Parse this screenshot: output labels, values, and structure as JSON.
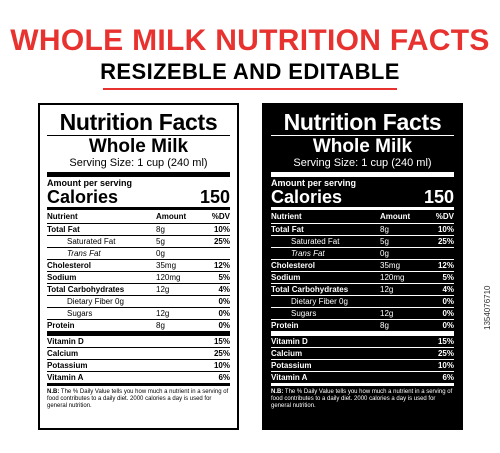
{
  "header": {
    "headline": "WHOLE MILK NUTRITION FACTS",
    "subhead": "RESIZEBLE AND EDITABLE",
    "accent_color": "#e8322f"
  },
  "label": {
    "title": "Nutrition Facts",
    "product": "Whole Milk",
    "serving": "Serving Size: 1 cup (240 ml)",
    "amount_per_serving": "Amount per serving",
    "calories_label": "Calories",
    "calories_value": "150",
    "columns": {
      "nutrient": "Nutrient",
      "amount": "Amount",
      "dv": "%DV"
    },
    "rows": [
      {
        "name": "Total Fat",
        "amount": "8g",
        "dv": "10%"
      },
      {
        "name": "Saturated Fat",
        "amount": "5g",
        "dv": "25%"
      },
      {
        "name": "Trans Fat",
        "amount": "0g",
        "dv": ""
      },
      {
        "name": "Cholesterol",
        "amount": "35mg",
        "dv": "12%"
      },
      {
        "name": "Sodium",
        "amount": "120mg",
        "dv": "5%"
      },
      {
        "name": "Total Carbohydrates",
        "amount": "12g",
        "dv": "4%"
      },
      {
        "name": "Dietary Fiber 0g",
        "amount": "",
        "dv": "0%"
      },
      {
        "name": "Sugars",
        "amount": "12g",
        "dv": "0%"
      },
      {
        "name": "Protein",
        "amount": "8g",
        "dv": "0%"
      },
      {
        "name": "Vitamin D",
        "amount": "",
        "dv": "15%"
      },
      {
        "name": "Calcium",
        "amount": "",
        "dv": "25%"
      },
      {
        "name": "Potassium",
        "amount": "",
        "dv": "10%"
      },
      {
        "name": "Vitamin A",
        "amount": "",
        "dv": "6%"
      }
    ],
    "note_prefix": "N.B:",
    "note_text": "The % Daily Value tells you how much a nutrient in a serving of food contributes to a daily diet. 2000 calories a day is used for general nutrition."
  },
  "stock_id": "1354076710"
}
